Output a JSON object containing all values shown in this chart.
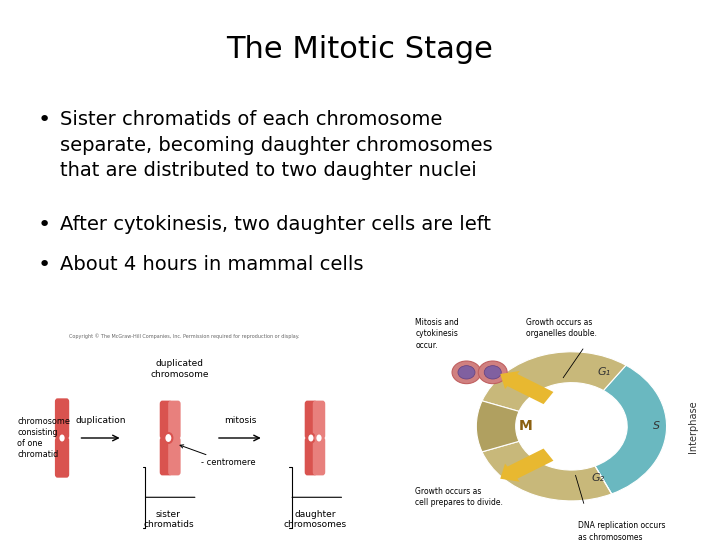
{
  "title": "The Mitotic Stage",
  "title_fontsize": 22,
  "title_fontfamily": "sans-serif",
  "background_color": "#ffffff",
  "bullet_points": [
    "Sister chromatids of each chromosome\nseparate, becoming daughter chromosomes\nthat are distributed to two daughter nuclei",
    "After cytokinesis, two daughter cells are left",
    "About 4 hours in mammal cells"
  ],
  "bullet_fontsize": 13,
  "bullet_color": "#000000",
  "text_color": "#000000",
  "chrom_red": "#d9534f",
  "chrom_red_light": "#e8807d",
  "cycle_tan": "#c8b87a",
  "cycle_tan_dark": "#a09050",
  "cycle_teal": "#6ab8c0",
  "cycle_gold": "#d4a030",
  "cycle_gold_arrow": "#e8b830",
  "copyright_text": "Copyright © The McGraw-Hill Companies, Inc. Permission required for reproduction or display."
}
